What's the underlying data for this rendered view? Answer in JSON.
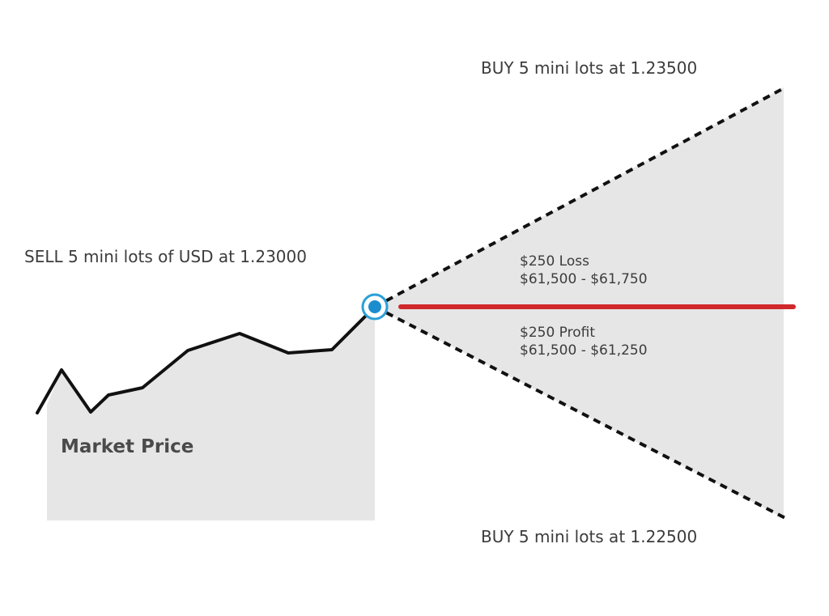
{
  "labels": {
    "buy_upper": "BUY 5 mini lots at 1.23500",
    "sell": "SELL 5 mini lots of  USD at 1.23000",
    "loss_title": "$250 Loss",
    "loss_range": "$61,500 - $61,750",
    "profit_title": "$250 Profit",
    "profit_range": "$61,500 - $61,250",
    "market_price": "Market Price",
    "buy_lower": "BUY 5 mini lots at 1.22500"
  },
  "colors": {
    "fill": "#e6e6e6",
    "price_line": "#111111",
    "dashed_line": "#111111",
    "red_line": "#d0292c",
    "marker_outer": "#2a9fd8",
    "marker_inner": "#1b8dcf",
    "text": "#3c3c3c"
  },
  "icons": {
    "entry_marker": "entry-point-icon"
  }
}
